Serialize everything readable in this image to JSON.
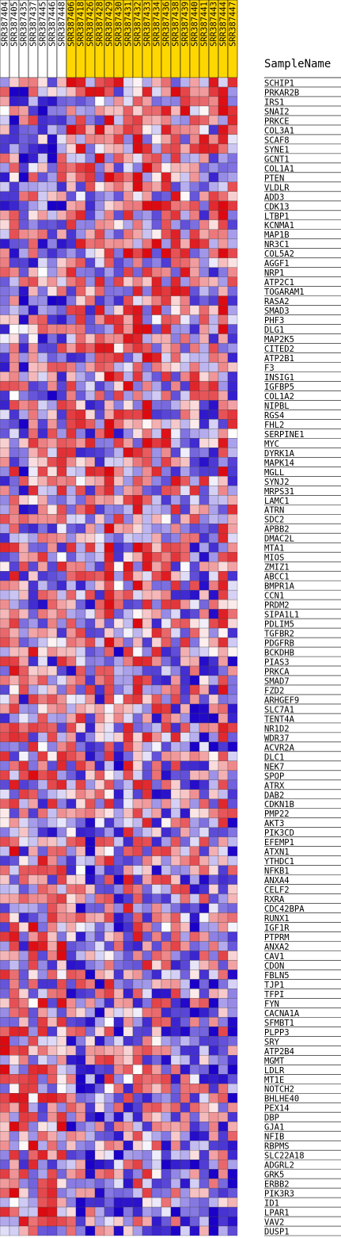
{
  "chart_data": {
    "type": "heatmap",
    "row_header": "SampleName",
    "columns": [
      {
        "name": "SRR387404",
        "group": "A"
      },
      {
        "name": "SRR387405",
        "group": "A"
      },
      {
        "name": "SRR387435",
        "group": "A"
      },
      {
        "name": "SRR387437",
        "group": "A"
      },
      {
        "name": "SRR387445",
        "group": "A"
      },
      {
        "name": "SRR387446",
        "group": "A"
      },
      {
        "name": "SRR387448",
        "group": "A"
      },
      {
        "name": "SRR387406",
        "group": "B"
      },
      {
        "name": "SRR387418",
        "group": "B"
      },
      {
        "name": "SRR387426",
        "group": "B"
      },
      {
        "name": "SRR387428",
        "group": "B"
      },
      {
        "name": "SRR387429",
        "group": "B"
      },
      {
        "name": "SRR387430",
        "group": "B"
      },
      {
        "name": "SRR387431",
        "group": "B"
      },
      {
        "name": "SRR387432",
        "group": "B"
      },
      {
        "name": "SRR387433",
        "group": "B"
      },
      {
        "name": "SRR387434",
        "group": "B"
      },
      {
        "name": "SRR387436",
        "group": "B"
      },
      {
        "name": "SRR387438",
        "group": "B"
      },
      {
        "name": "SRR387439",
        "group": "B"
      },
      {
        "name": "SRR387440",
        "group": "B"
      },
      {
        "name": "SRR387441",
        "group": "B"
      },
      {
        "name": "SRR387443",
        "group": "B"
      },
      {
        "name": "SRR387444",
        "group": "B"
      },
      {
        "name": "SRR387447",
        "group": "B"
      }
    ],
    "group_colors": {
      "A": "#ffffff",
      "B": "#ffd700"
    },
    "rows": [
      "SCHIP1",
      "PRKAR2B",
      "IRS1",
      "SNAI2",
      "PRKCE",
      "COL3A1",
      "SCAF8",
      "SYNE1",
      "GCNT1",
      "COL1A1",
      "PTEN",
      "VLDLR",
      "ADD3",
      "CDK13",
      "LTBP1",
      "KCNMA1",
      "MAP1B",
      "NR3C1",
      "COL5A2",
      "AGGF1",
      "NRP1",
      "ATP2C1",
      "TOGARAM1",
      "RASA2",
      "SMAD3",
      "PHF3",
      "DLG1",
      "MAP2K5",
      "CITED2",
      "ATP2B1",
      "F3",
      "INSIG1",
      "IGFBP5",
      "COL1A2",
      "NIPBL",
      "RGS4",
      "FHL2",
      "SERPINE1",
      "MYC",
      "DYRK1A",
      "MAPK14",
      "MGLL",
      "SYNJ2",
      "MRPS31",
      "LAMC1",
      "ATRN",
      "SDC2",
      "APBB2",
      "DMAC2L",
      "MTA1",
      "MIOS",
      "ZMIZ1",
      "ABCC1",
      "BMPR1A",
      "CCN1",
      "PRDM2",
      "SIPA1L1",
      "PDLIM5",
      "TGFBR2",
      "PDGFRB",
      "BCKDHB",
      "PIAS3",
      "PRKCA",
      "SMAD7",
      "FZD2",
      "ARHGEF9",
      "SLC7A1",
      "TENT4A",
      "NR1D2",
      "WDR37",
      "ACVR2A",
      "DLC1",
      "NEK7",
      "SPOP",
      "ATRX",
      "DAB2",
      "CDKN1B",
      "PMP22",
      "AKT3",
      "PIK3CD",
      "EFEMP1",
      "ATXN1",
      "YTHDC1",
      "NFKB1",
      "ANXA4",
      "CELF2",
      "RXRA",
      "CDC42BPA",
      "RUNX1",
      "IGF1R",
      "PTPRM",
      "ANXA2",
      "CAV1",
      "CDON",
      "FBLN5",
      "TJP1",
      "TFPI",
      "FYN",
      "CACNA1A",
      "SFMBT1",
      "PLPP3",
      "SRY",
      "ATP2B4",
      "MGMT",
      "LDLR",
      "MT1E",
      "NOTCH2",
      "BHLHE40",
      "PEX14",
      "DBP",
      "GJA1",
      "NFIB",
      "RBPMS",
      "SLC22A18",
      "ADGRL2",
      "GRK5",
      "ERBB2",
      "PIK3R3",
      "ID1",
      "LPAR1",
      "VAV2",
      "DUSP1"
    ],
    "color_scale": {
      "low": "#1a00c8",
      "mid": "#ffffff",
      "high": "#dc0a10",
      "range": [
        -3,
        3
      ]
    },
    "seed": 38741
  }
}
